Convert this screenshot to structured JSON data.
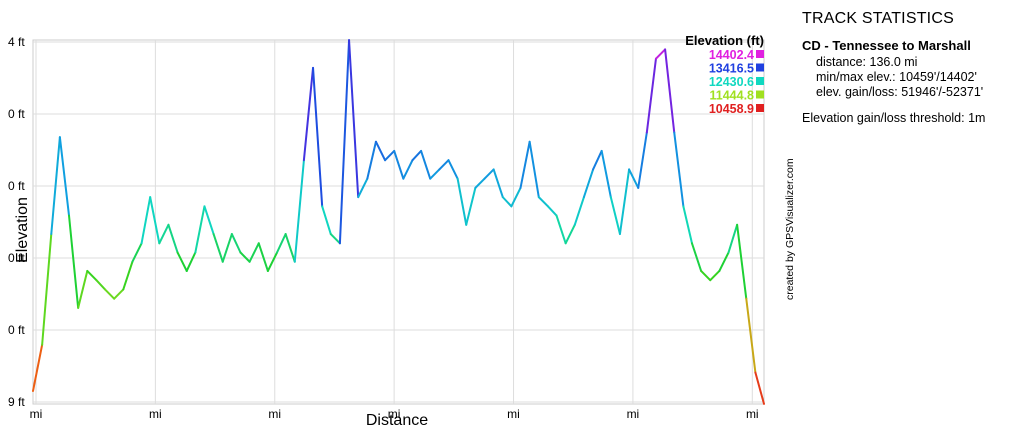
{
  "chart_data": {
    "type": "line",
    "title": "Elevation (ft)",
    "xlabel": "Distance",
    "ylabel": "Elevation",
    "y_tick_labels": [
      "4 ft",
      "0 ft",
      "0 ft",
      "0 ft",
      "0 ft",
      "9 ft"
    ],
    "x_tick_labels": [
      "mi",
      "mi",
      "mi",
      "mi",
      "mi",
      "mi",
      "mi"
    ],
    "ylim": [
      10459,
      14402
    ],
    "xlim": [
      0,
      136.0
    ],
    "grid": true,
    "legend": {
      "position": "top-right",
      "entries": [
        {
          "label": "14402.4",
          "color": "#e020e0"
        },
        {
          "label": "13416.5",
          "color": "#2040e0"
        },
        {
          "label": "12430.6",
          "color": "#10d8c0"
        },
        {
          "label": "11444.8",
          "color": "#a0e020"
        },
        {
          "label": "10458.9",
          "color": "#e02020"
        }
      ]
    },
    "colorscale": [
      "#e02020",
      "#f07010",
      "#a0e020",
      "#20d020",
      "#10d8c0",
      "#10a0e0",
      "#2040e0",
      "#8020e0",
      "#e020e0"
    ],
    "x": [
      0,
      1.7,
      3.4,
      5.0,
      6.7,
      8.4,
      10.1,
      11.8,
      13.4,
      15.1,
      16.8,
      18.5,
      20.2,
      21.8,
      23.5,
      25.2,
      26.9,
      28.6,
      30.2,
      31.9,
      33.6,
      35.3,
      37.0,
      38.6,
      40.3,
      42.0,
      43.7,
      45.4,
      47.0,
      48.7,
      50.4,
      52.1,
      53.8,
      55.4,
      57.1,
      58.8,
      60.5,
      62.2,
      63.8,
      65.5,
      67.2,
      68.9,
      70.6,
      72.2,
      73.9,
      75.6,
      77.3,
      79.0,
      80.6,
      82.3,
      84.0,
      85.7,
      87.4,
      89.0,
      90.7,
      92.4,
      94.1,
      95.8,
      97.4,
      99.1,
      100.8,
      102.5,
      104.2,
      105.8,
      107.5,
      109.2,
      110.9,
      112.6,
      114.2,
      115.9,
      117.6,
      119.3,
      121.0,
      122.6,
      124.3,
      126.0,
      127.7,
      129.4,
      131.0,
      132.7,
      134.4,
      136.0
    ],
    "y": [
      10600,
      11100,
      12300,
      13350,
      12500,
      11500,
      11900,
      11800,
      11700,
      11600,
      11700,
      12000,
      12200,
      12700,
      12200,
      12400,
      12100,
      11900,
      12100,
      12600,
      12300,
      12000,
      12300,
      12100,
      12000,
      12200,
      11900,
      12100,
      12300,
      12000,
      13100,
      14100,
      12600,
      12300,
      12200,
      14400,
      12700,
      12900,
      13300,
      13100,
      13200,
      12900,
      13100,
      13200,
      12900,
      13000,
      13100,
      12900,
      12400,
      12800,
      12900,
      13000,
      12700,
      12600,
      12800,
      13300,
      12700,
      12600,
      12500,
      12200,
      12400,
      12700,
      13000,
      13200,
      12700,
      12300,
      13000,
      12800,
      13400,
      14200,
      14300,
      13400,
      12600,
      12200,
      11900,
      11800,
      11900,
      12100,
      12400,
      11600,
      10800,
      10460
    ]
  },
  "legend_title": "Elevation (ft)",
  "stats": {
    "heading": "TRACK STATISTICS",
    "track_name": "CD - Tennessee to Marshall",
    "distance": "distance: 136.0 mi",
    "min_max": "min/max elev.: 10459'/14402'",
    "gain_loss": "elev. gain/loss: 51946'/-52371'",
    "threshold": "Elevation gain/loss threshold: 1m"
  },
  "credit": "created by GPSVisualizer.com"
}
